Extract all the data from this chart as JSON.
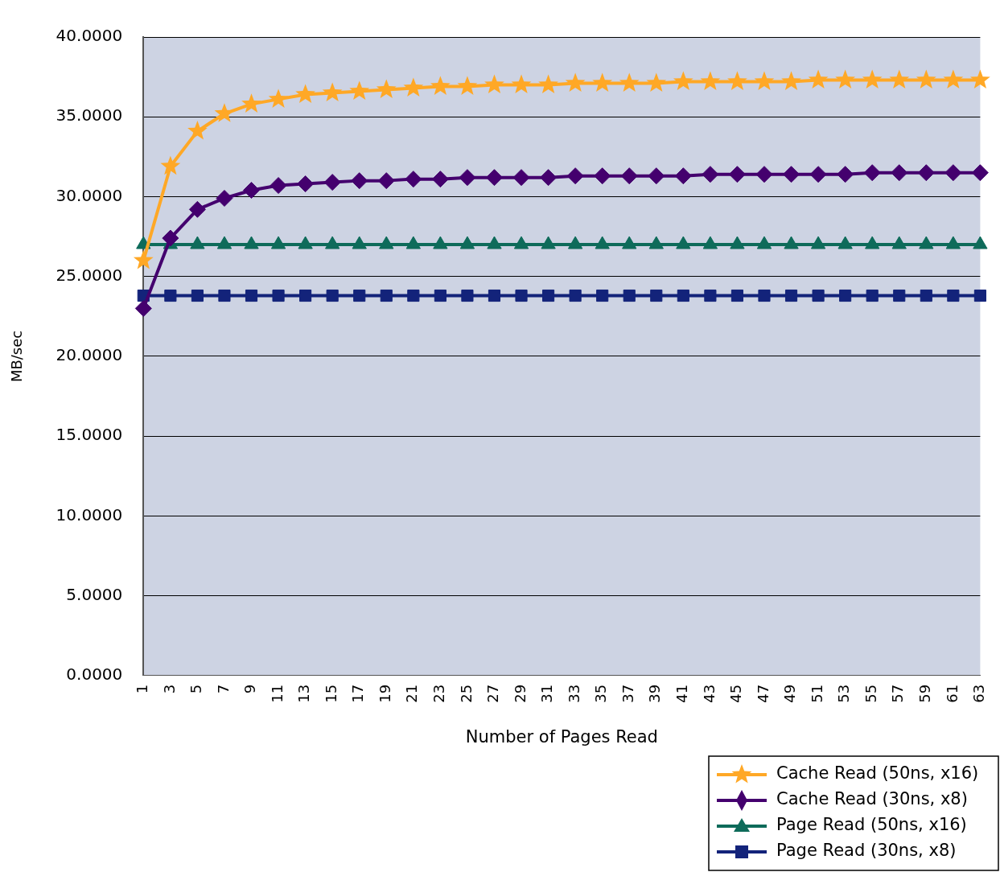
{
  "chart_data": {
    "type": "line",
    "xlabel": "Number of Pages Read",
    "ylabel": "MB/sec",
    "categories": [
      "1",
      "3",
      "5",
      "7",
      "9",
      "11",
      "13",
      "15",
      "17",
      "19",
      "21",
      "23",
      "25",
      "27",
      "29",
      "31",
      "33",
      "35",
      "37",
      "39",
      "41",
      "43",
      "45",
      "47",
      "49",
      "51",
      "53",
      "55",
      "57",
      "59",
      "61",
      "63"
    ],
    "ylim": [
      0,
      40
    ],
    "yticks": [
      {
        "value": 0,
        "label": "0.0000"
      },
      {
        "value": 5,
        "label": "5.0000"
      },
      {
        "value": 10,
        "label": "10.0000"
      },
      {
        "value": 15,
        "label": "15.0000"
      },
      {
        "value": 20,
        "label": "20.0000"
      },
      {
        "value": 25,
        "label": "25.0000"
      },
      {
        "value": 30,
        "label": "30.0000"
      },
      {
        "value": 35,
        "label": "35.0000"
      },
      {
        "value": 40,
        "label": "40.0000"
      }
    ],
    "grid": "y",
    "legend": "bottom right",
    "series": [
      {
        "name": "Cache Read (50ns, x16)",
        "color": "#ffa826",
        "marker": "star",
        "values": [
          26.0,
          31.9,
          34.1,
          35.2,
          35.8,
          36.1,
          36.4,
          36.5,
          36.6,
          36.7,
          36.8,
          36.9,
          36.9,
          37.0,
          37.0,
          37.0,
          37.1,
          37.1,
          37.1,
          37.1,
          37.2,
          37.2,
          37.2,
          37.2,
          37.2,
          37.3,
          37.3,
          37.3,
          37.3,
          37.3,
          37.3,
          37.3
        ]
      },
      {
        "name": "Cache Read (30ns, x8)",
        "color": "#44006e",
        "marker": "diamond",
        "values": [
          23.0,
          27.4,
          29.2,
          29.9,
          30.4,
          30.7,
          30.8,
          30.9,
          31.0,
          31.0,
          31.1,
          31.1,
          31.2,
          31.2,
          31.2,
          31.2,
          31.3,
          31.3,
          31.3,
          31.3,
          31.3,
          31.4,
          31.4,
          31.4,
          31.4,
          31.4,
          31.4,
          31.5,
          31.5,
          31.5,
          31.5,
          31.5
        ]
      },
      {
        "name": "Page Read (50ns, x16)",
        "color": "#0e6b5a",
        "marker": "triangle",
        "values": [
          27.0,
          27.0,
          27.0,
          27.0,
          27.0,
          27.0,
          27.0,
          27.0,
          27.0,
          27.0,
          27.0,
          27.0,
          27.0,
          27.0,
          27.0,
          27.0,
          27.0,
          27.0,
          27.0,
          27.0,
          27.0,
          27.0,
          27.0,
          27.0,
          27.0,
          27.0,
          27.0,
          27.0,
          27.0,
          27.0,
          27.0,
          27.0
        ]
      },
      {
        "name": "Page Read (30ns, x8)",
        "color": "#13237a",
        "marker": "square",
        "values": [
          23.8,
          23.8,
          23.8,
          23.8,
          23.8,
          23.8,
          23.8,
          23.8,
          23.8,
          23.8,
          23.8,
          23.8,
          23.8,
          23.8,
          23.8,
          23.8,
          23.8,
          23.8,
          23.8,
          23.8,
          23.8,
          23.8,
          23.8,
          23.8,
          23.8,
          23.8,
          23.8,
          23.8,
          23.8,
          23.8,
          23.8,
          23.8
        ]
      }
    ]
  }
}
